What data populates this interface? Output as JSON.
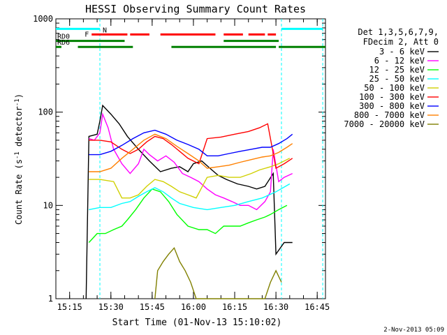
{
  "chart_data": {
    "type": "line",
    "title": "HESSI Observing Summary Count Rates",
    "xlabel": "Start Time (01-Nov-13 15:10:02)",
    "ylabel_main": "Count Rate (s",
    "ylabel_sup1": "-1",
    "ylabel_mid": " detector",
    "ylabel_sup2": "-1",
    "ylabel_end": ")",
    "yscale": "log",
    "xlim": [
      "15:10",
      "16:48"
    ],
    "ylim": [
      1,
      1000
    ],
    "x_ticks": [
      "15:15",
      "15:30",
      "15:45",
      "16:00",
      "16:15",
      "16:30",
      "16:45"
    ],
    "y_ticks": [
      "1",
      "10",
      "100",
      "1000"
    ],
    "legend_header": [
      "Det 1,3,5,6,7,9,",
      "FDecim 2, Att 0"
    ],
    "legend_position": "right",
    "timestamp": "2-Nov-2013 05:09",
    "orbit_markers": [
      {
        "label": "N",
        "color": "#00ffff",
        "start": "15:10",
        "end": "15:26",
        "y": 780
      },
      {
        "label": "N",
        "color": "#00ffff",
        "start": "16:32",
        "end": "16:47",
        "y": 780
      },
      {
        "label": "F",
        "color": "#ff0000",
        "segments": [
          [
            "15:23",
            "15:36"
          ],
          [
            "15:37",
            "15:44"
          ],
          [
            "15:48",
            "16:08"
          ],
          [
            "16:11",
            "16:18"
          ],
          [
            "16:20",
            "16:26"
          ],
          [
            "16:27",
            "16:30"
          ]
        ],
        "y": 680
      },
      {
        "label": "RD0",
        "color": "#008000",
        "segments": [
          [
            "15:10",
            "15:35"
          ],
          [
            "16:11",
            "16:31"
          ]
        ],
        "y": 580
      },
      {
        "label": "RD6",
        "color": "#008000",
        "segments": [
          [
            "15:10",
            "15:12"
          ],
          [
            "15:18",
            "15:38"
          ],
          [
            "15:52",
            "16:30"
          ],
          [
            "16:31",
            "16:48"
          ]
        ],
        "y": 500
      }
    ],
    "saa_lines": [
      "15:26",
      "16:32",
      "16:47"
    ],
    "series": [
      {
        "name": "3 - 6 keV",
        "color": "#000000",
        "points": [
          [
            "15:21",
            1
          ],
          [
            "15:22",
            55
          ],
          [
            "15:25",
            58
          ],
          [
            "15:26",
            80
          ],
          [
            "15:27",
            118
          ],
          [
            "15:30",
            95
          ],
          [
            "15:33",
            75
          ],
          [
            "15:36",
            55
          ],
          [
            "15:40",
            40
          ],
          [
            "15:44",
            30
          ],
          [
            "15:48",
            23
          ],
          [
            "15:52",
            25
          ],
          [
            "15:55",
            26
          ],
          [
            "15:58",
            23
          ],
          [
            "16:00",
            28
          ],
          [
            "16:03",
            30
          ],
          [
            "16:06",
            25
          ],
          [
            "16:09",
            21
          ],
          [
            "16:12",
            19
          ],
          [
            "16:16",
            17
          ],
          [
            "16:20",
            16
          ],
          [
            "16:23",
            15
          ],
          [
            "16:26",
            16
          ],
          [
            "16:29",
            22
          ],
          [
            "16:30",
            3
          ],
          [
            "16:33",
            4
          ],
          [
            "16:36",
            4
          ]
        ]
      },
      {
        "name": "6 - 12 keV",
        "color": "#ff00ff",
        "points": [
          [
            "15:22",
            52
          ],
          [
            "15:24",
            50
          ],
          [
            "15:26",
            60
          ],
          [
            "15:27",
            95
          ],
          [
            "15:29",
            68
          ],
          [
            "15:31",
            40
          ],
          [
            "15:34",
            28
          ],
          [
            "15:37",
            22
          ],
          [
            "15:40",
            28
          ],
          [
            "15:42",
            40
          ],
          [
            "15:44",
            35
          ],
          [
            "15:47",
            30
          ],
          [
            "15:50",
            34
          ],
          [
            "15:53",
            29
          ],
          [
            "15:56",
            22
          ],
          [
            "15:59",
            20
          ],
          [
            "16:02",
            18
          ],
          [
            "16:05",
            15
          ],
          [
            "16:08",
            13
          ],
          [
            "16:11",
            12
          ],
          [
            "16:14",
            11
          ],
          [
            "16:17",
            10
          ],
          [
            "16:20",
            10
          ],
          [
            "16:23",
            9
          ],
          [
            "16:26",
            11
          ],
          [
            "16:28",
            14
          ],
          [
            "16:29",
            40
          ],
          [
            "16:31",
            18
          ],
          [
            "16:33",
            20
          ],
          [
            "16:36",
            22
          ]
        ]
      },
      {
        "name": "12 - 25 keV",
        "color": "#00ff00",
        "points": [
          [
            "15:22",
            4
          ],
          [
            "15:25",
            5
          ],
          [
            "15:28",
            5
          ],
          [
            "15:31",
            5.5
          ],
          [
            "15:34",
            6
          ],
          [
            "15:36",
            7
          ],
          [
            "15:39",
            9
          ],
          [
            "15:42",
            12
          ],
          [
            "15:45",
            15
          ],
          [
            "15:48",
            14
          ],
          [
            "15:51",
            11
          ],
          [
            "15:54",
            8
          ],
          [
            "15:58",
            6
          ],
          [
            "16:02",
            5.5
          ],
          [
            "16:05",
            5.5
          ],
          [
            "16:08",
            5
          ],
          [
            "16:11",
            6
          ],
          [
            "16:14",
            6
          ],
          [
            "16:17",
            6
          ],
          [
            "16:20",
            6.5
          ],
          [
            "16:23",
            7
          ],
          [
            "16:26",
            7.5
          ],
          [
            "16:28",
            8
          ],
          [
            "16:31",
            9
          ],
          [
            "16:34",
            10
          ]
        ]
      },
      {
        "name": "25 - 50 keV",
        "color": "#00ffff",
        "points": [
          [
            "15:22",
            9
          ],
          [
            "15:26",
            9.5
          ],
          [
            "15:30",
            9.5
          ],
          [
            "15:34",
            10.5
          ],
          [
            "15:37",
            11
          ],
          [
            "15:40",
            12.5
          ],
          [
            "15:43",
            14
          ],
          [
            "15:46",
            15.5
          ],
          [
            "15:49",
            14
          ],
          [
            "15:52",
            12
          ],
          [
            "15:55",
            10.5
          ],
          [
            "16:00",
            9.5
          ],
          [
            "16:05",
            9
          ],
          [
            "16:10",
            9.5
          ],
          [
            "16:15",
            10
          ],
          [
            "16:20",
            11
          ],
          [
            "16:25",
            12
          ],
          [
            "16:30",
            14
          ],
          [
            "16:35",
            17
          ]
        ]
      },
      {
        "name": "50 - 100 keV",
        "color": "#d0d000",
        "points": [
          [
            "15:22",
            19
          ],
          [
            "15:26",
            19
          ],
          [
            "15:31",
            18
          ],
          [
            "15:34",
            12
          ],
          [
            "15:37",
            12
          ],
          [
            "15:40",
            13
          ],
          [
            "15:43",
            16
          ],
          [
            "15:46",
            19
          ],
          [
            "15:49",
            18
          ],
          [
            "15:52",
            16
          ],
          [
            "15:55",
            14
          ],
          [
            "15:58",
            13
          ],
          [
            "16:01",
            12
          ],
          [
            "16:05",
            20
          ],
          [
            "16:09",
            21
          ],
          [
            "16:13",
            20
          ],
          [
            "16:17",
            20
          ],
          [
            "16:21",
            22
          ],
          [
            "16:24",
            24
          ],
          [
            "16:28",
            26
          ],
          [
            "16:31",
            28
          ],
          [
            "16:35",
            32
          ]
        ]
      },
      {
        "name": "100 - 300 keV",
        "color": "#ff0000",
        "points": [
          [
            "15:22",
            50
          ],
          [
            "15:26",
            50
          ],
          [
            "15:30",
            48
          ],
          [
            "15:34",
            40
          ],
          [
            "15:37",
            36
          ],
          [
            "15:40",
            40
          ],
          [
            "15:43",
            48
          ],
          [
            "15:46",
            55
          ],
          [
            "15:49",
            52
          ],
          [
            "15:52",
            45
          ],
          [
            "15:55",
            38
          ],
          [
            "15:58",
            32
          ],
          [
            "16:02",
            28
          ],
          [
            "16:05",
            52
          ],
          [
            "16:10",
            54
          ],
          [
            "16:15",
            58
          ],
          [
            "16:20",
            62
          ],
          [
            "16:24",
            68
          ],
          [
            "16:27",
            75
          ],
          [
            "16:30",
            25
          ],
          [
            "16:33",
            28
          ],
          [
            "16:36",
            32
          ]
        ]
      },
      {
        "name": "300 - 800 keV",
        "color": "#0000ff",
        "points": [
          [
            "15:22",
            35
          ],
          [
            "15:26",
            35
          ],
          [
            "15:30",
            38
          ],
          [
            "15:34",
            44
          ],
          [
            "15:38",
            52
          ],
          [
            "15:42",
            60
          ],
          [
            "15:46",
            64
          ],
          [
            "15:50",
            58
          ],
          [
            "15:54",
            50
          ],
          [
            "15:58",
            45
          ],
          [
            "16:02",
            40
          ],
          [
            "16:05",
            34
          ],
          [
            "16:09",
            34
          ],
          [
            "16:13",
            36
          ],
          [
            "16:17",
            38
          ],
          [
            "16:21",
            40
          ],
          [
            "16:25",
            42
          ],
          [
            "16:28",
            42
          ],
          [
            "16:31",
            46
          ],
          [
            "16:34",
            52
          ],
          [
            "16:36",
            58
          ]
        ]
      },
      {
        "name": "800 - 7000 keV",
        "color": "#ff8000",
        "points": [
          [
            "15:22",
            23
          ],
          [
            "15:26",
            23
          ],
          [
            "15:30",
            25
          ],
          [
            "15:34",
            32
          ],
          [
            "15:38",
            40
          ],
          [
            "15:42",
            50
          ],
          [
            "15:46",
            58
          ],
          [
            "15:50",
            52
          ],
          [
            "15:54",
            43
          ],
          [
            "15:58",
            36
          ],
          [
            "16:02",
            30
          ],
          [
            "16:05",
            25
          ],
          [
            "16:09",
            26
          ],
          [
            "16:13",
            27
          ],
          [
            "16:17",
            29
          ],
          [
            "16:21",
            31
          ],
          [
            "16:25",
            33
          ],
          [
            "16:28",
            34
          ],
          [
            "16:31",
            37
          ],
          [
            "16:34",
            42
          ],
          [
            "16:36",
            46
          ]
        ]
      },
      {
        "name": "7000 - 20000 keV",
        "color": "#808000",
        "points": [
          [
            "15:46",
            1
          ],
          [
            "15:47",
            2
          ],
          [
            "15:49",
            2.5
          ],
          [
            "15:51",
            3
          ],
          [
            "15:53",
            3.5
          ],
          [
            "15:55",
            2.5
          ],
          [
            "15:57",
            2
          ],
          [
            "15:59",
            1.5
          ],
          [
            "16:01",
            1
          ],
          [
            "16:26",
            1
          ],
          [
            "16:28",
            1.5
          ],
          [
            "16:30",
            2
          ],
          [
            "16:32",
            1.5
          ]
        ]
      }
    ]
  }
}
